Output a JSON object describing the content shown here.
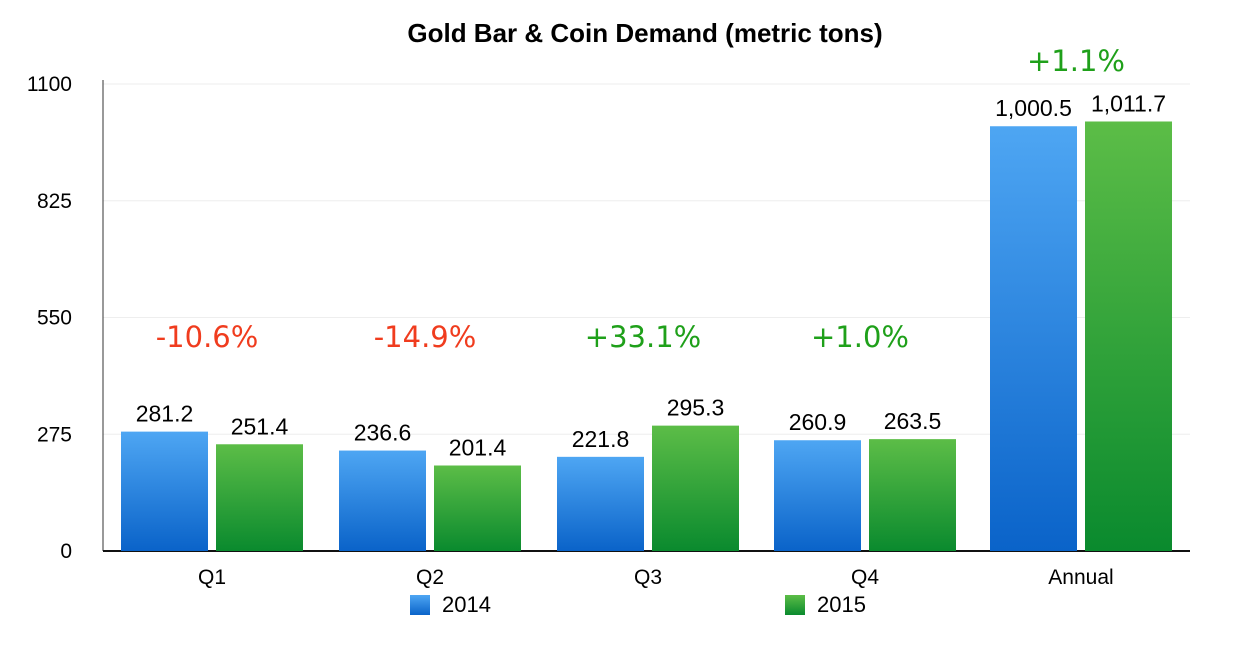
{
  "chart_data": {
    "type": "bar",
    "title": "Gold Bar & Coin Demand (metric tons)",
    "categories": [
      "Q1",
      "Q2",
      "Q3",
      "Q4",
      "Annual"
    ],
    "series": [
      {
        "name": "2014",
        "values": [
          281.2,
          236.6,
          221.8,
          260.9,
          1000.5
        ],
        "labels": [
          "281.2",
          "236.6",
          "221.8",
          "260.9",
          "1,000.5"
        ],
        "color_top": "#4ea6f3",
        "color_bottom": "#0a63c9"
      },
      {
        "name": "2015",
        "values": [
          251.4,
          201.4,
          295.3,
          263.5,
          1011.7
        ],
        "labels": [
          "251.4",
          "201.4",
          "295.3",
          "263.5",
          "1,011.7"
        ],
        "color_top": "#5cbd47",
        "color_bottom": "#0a8a2e"
      }
    ],
    "changes": [
      {
        "text": "-10.6%",
        "color": "#f03c1e"
      },
      {
        "text": "-14.9%",
        "color": "#f03c1e"
      },
      {
        "text": "+33.1%",
        "color": "#1fa01a"
      },
      {
        "text": "+1.0%",
        "color": "#1fa01a"
      },
      {
        "text": "+1.1%",
        "color": "#1fa01a"
      }
    ],
    "yticks": [
      "0",
      "275",
      "550",
      "825",
      "1100"
    ],
    "ylim": [
      0,
      1100
    ],
    "grid": true,
    "legend_position": "bottom"
  }
}
